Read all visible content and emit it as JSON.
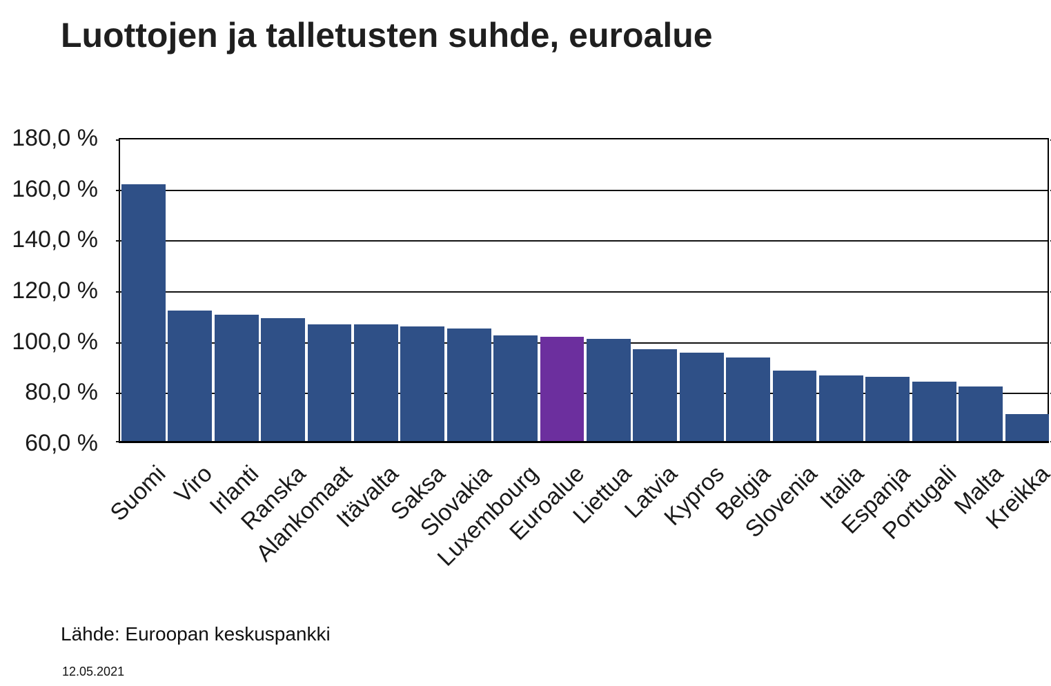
{
  "title": "Luottojen ja talletusten suhde, euroalue",
  "source": "Lähde: Euroopan keskuspankki",
  "date": "12.05.2021",
  "chart_data": {
    "type": "bar",
    "title": "Luottojen ja talletusten suhde, euroalue",
    "categories": [
      "Suomi",
      "Viro",
      "Irlanti",
      "Ranska",
      "Alankomaat",
      "Itävalta",
      "Saksa",
      "Slovakia",
      "Luxembourg",
      "Euroalue",
      "Liettua",
      "Latvia",
      "Kypros",
      "Belgia",
      "Slovenia",
      "Italia",
      "Espanja",
      "Portugali",
      "Malta",
      "Kreikka"
    ],
    "values": [
      161.9,
      112.0,
      110.6,
      109.2,
      106.8,
      106.6,
      105.9,
      105.0,
      102.4,
      101.8,
      101.0,
      96.8,
      95.6,
      93.6,
      88.5,
      86.6,
      86.1,
      84.3,
      82.4,
      71.4
    ],
    "unit": "%",
    "highlight_category": "Euroalue",
    "bar_color": "#2F5087",
    "highlight_color": "#6C2F9E",
    "grid": true,
    "legend": false,
    "ylim": [
      60,
      180
    ],
    "ytick_step": 20,
    "yticks": [
      "180,0 %",
      "160,0 %",
      "140,0 %",
      "120,0 %",
      "100,0 %",
      "80,0 %",
      "60,0 %"
    ],
    "xlabel": "",
    "ylabel": "",
    "x_tick_rotation": -45
  }
}
